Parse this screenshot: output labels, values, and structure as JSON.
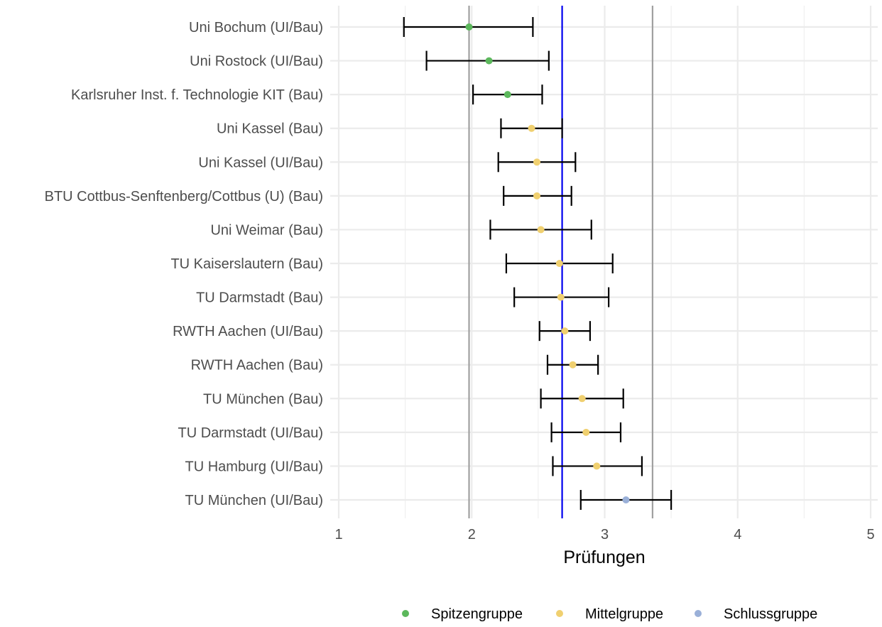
{
  "chart_data": {
    "type": "errorbar-dot",
    "title": "",
    "xlabel": "Prüfungen",
    "ylabel": "",
    "xlim": [
      1,
      5
    ],
    "x_ticks": [
      "1",
      "2",
      "3",
      "4",
      "5"
    ],
    "grid": true,
    "legend_position": "bottom",
    "reference_lines": [
      {
        "value": 1.98,
        "color": "#a0a0a0"
      },
      {
        "value": 2.68,
        "color": "#0000ee"
      },
      {
        "value": 3.36,
        "color": "#a0a0a0"
      }
    ],
    "groups": [
      {
        "name": "Spitzengruppe",
        "color": "#5cb85c"
      },
      {
        "name": "Mittelgruppe",
        "color": "#f0d070"
      },
      {
        "name": "Schlussgruppe",
        "color": "#9ab0d8"
      }
    ],
    "points": [
      {
        "label": "Uni Bochum (UI/Bau)",
        "value": 1.98,
        "low": 1.49,
        "high": 2.46,
        "group": 0
      },
      {
        "label": "Uni Rostock (UI/Bau)",
        "value": 2.13,
        "low": 1.66,
        "high": 2.58,
        "group": 0
      },
      {
        "label": "Karlsruher Inst. f. Technologie KIT (Bau)",
        "value": 2.27,
        "low": 2.01,
        "high": 2.53,
        "group": 0
      },
      {
        "label": "Uni Kassel (Bau)",
        "value": 2.45,
        "low": 2.22,
        "high": 2.68,
        "group": 1
      },
      {
        "label": "Uni Kassel (UI/Bau)",
        "value": 2.49,
        "low": 2.2,
        "high": 2.78,
        "group": 1
      },
      {
        "label": "BTU Cottbus-Senftenberg/Cottbus (U) (Bau)",
        "value": 2.49,
        "low": 2.24,
        "high": 2.75,
        "group": 1
      },
      {
        "label": "Uni Weimar (Bau)",
        "value": 2.52,
        "low": 2.14,
        "high": 2.9,
        "group": 1
      },
      {
        "label": "TU Kaiserslautern (Bau)",
        "value": 2.66,
        "low": 2.26,
        "high": 3.06,
        "group": 1
      },
      {
        "label": "TU Darmstadt (Bau)",
        "value": 2.67,
        "low": 2.32,
        "high": 3.03,
        "group": 1
      },
      {
        "label": "RWTH Aachen (UI/Bau)",
        "value": 2.7,
        "low": 2.51,
        "high": 2.89,
        "group": 1
      },
      {
        "label": "RWTH Aachen (Bau)",
        "value": 2.76,
        "low": 2.57,
        "high": 2.95,
        "group": 1
      },
      {
        "label": "TU München (Bau)",
        "value": 2.83,
        "low": 2.52,
        "high": 3.14,
        "group": 1
      },
      {
        "label": "TU Darmstadt (UI/Bau)",
        "value": 2.86,
        "low": 2.6,
        "high": 3.12,
        "group": 1
      },
      {
        "label": "TU Hamburg (UI/Bau)",
        "value": 2.94,
        "low": 2.61,
        "high": 3.28,
        "group": 1
      },
      {
        "label": "TU München (UI/Bau)",
        "value": 3.16,
        "low": 2.82,
        "high": 3.5,
        "group": 2
      }
    ]
  }
}
